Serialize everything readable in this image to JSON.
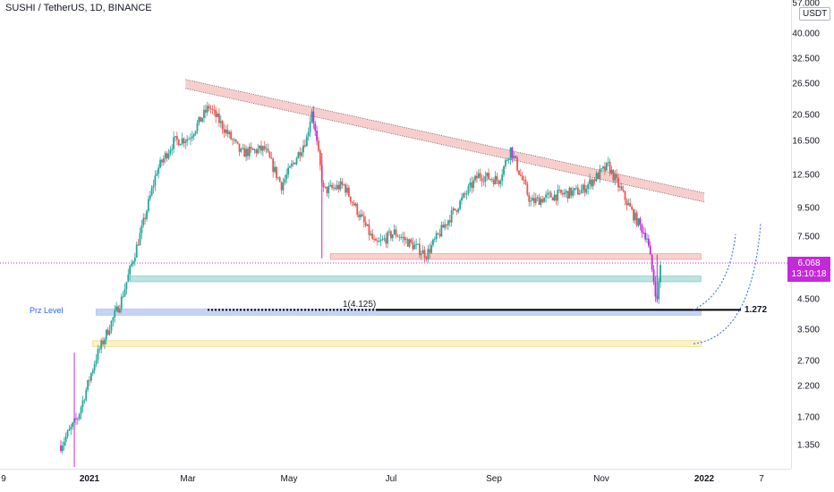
{
  "header": {
    "symbol_title": "SUSHI / TetherUS, 1D, BINANCE"
  },
  "price_axis": {
    "unit": "USDT",
    "ticks": [
      "57.000",
      "40.000",
      "32.500",
      "26.500",
      "20.500",
      "16.500",
      "12.500",
      "9.500",
      "7.500",
      "6.068",
      "4.500",
      "3.500",
      "2.700",
      "2.200",
      "1.700",
      "1.350"
    ]
  },
  "time_axis": {
    "ticks": [
      "9",
      "2021",
      "Mar",
      "May",
      "Jul",
      "Sep",
      "Nov",
      "2022",
      "7"
    ]
  },
  "current_price": {
    "value": "6.068",
    "countdown": "13:10:18"
  },
  "annotations": {
    "prz_label": "Prz Level",
    "fib_label_left": "1(4.125)",
    "fib_label_right": "1.272"
  },
  "colors": {
    "up": "#26a69a",
    "down": "#ef5350",
    "highlight": "#c42bd8",
    "resistance_zone": "#f7c9c6",
    "support_zone_green": "#b2dfdb",
    "prz_zone_blue": "#bbcdf5",
    "support_zone_yellow": "#fdf1b8",
    "fib_line": "#000000",
    "curve": "#2962ff"
  },
  "chart_data": {
    "type": "candlestick",
    "title": "SUSHI / TetherUS, 1D, BINANCE",
    "y_scale": "log",
    "ylim": [
      1.15,
      57
    ],
    "x_range": [
      "2020-12-09",
      "2022-01-07"
    ],
    "series_close_approx": [
      {
        "date": "2020-12-15",
        "close": 1.35
      },
      {
        "date": "2020-12-25",
        "close": 1.7
      },
      {
        "date": "2021-01-05",
        "close": 2.8
      },
      {
        "date": "2021-01-20",
        "close": 4.5
      },
      {
        "date": "2021-02-01",
        "close": 8.0
      },
      {
        "date": "2021-02-10",
        "close": 13.0
      },
      {
        "date": "2021-02-20",
        "close": 16.5
      },
      {
        "date": "2021-03-01",
        "close": 17.0
      },
      {
        "date": "2021-03-13",
        "close": 22.0
      },
      {
        "date": "2021-04-01",
        "close": 15.0
      },
      {
        "date": "2021-04-15",
        "close": 15.5
      },
      {
        "date": "2021-04-25",
        "close": 11.5
      },
      {
        "date": "2021-05-10",
        "close": 17.0
      },
      {
        "date": "2021-05-13",
        "close": 21.5
      },
      {
        "date": "2021-05-20",
        "close": 11.0
      },
      {
        "date": "2021-06-01",
        "close": 11.5
      },
      {
        "date": "2021-06-20",
        "close": 7.0
      },
      {
        "date": "2021-07-01",
        "close": 7.8
      },
      {
        "date": "2021-07-20",
        "close": 6.5
      },
      {
        "date": "2021-08-01",
        "close": 8.5
      },
      {
        "date": "2021-08-20",
        "close": 12.5
      },
      {
        "date": "2021-09-01",
        "close": 12.0
      },
      {
        "date": "2021-09-08",
        "close": 15.5
      },
      {
        "date": "2021-09-20",
        "close": 10.0
      },
      {
        "date": "2021-10-01",
        "close": 10.5
      },
      {
        "date": "2021-10-20",
        "close": 11.0
      },
      {
        "date": "2021-11-05",
        "close": 13.5
      },
      {
        "date": "2021-11-20",
        "close": 9.0
      },
      {
        "date": "2021-11-28",
        "close": 7.5
      },
      {
        "date": "2021-12-04",
        "close": 4.4
      },
      {
        "date": "2021-12-06",
        "close": 6.068
      }
    ],
    "zones": [
      {
        "name": "resistance-trendline-channel",
        "from": [
          "2021-02-27",
          27.5
        ],
        "to": [
          "2022-01-01",
          10.8
        ]
      },
      {
        "name": "horizontal-resistance",
        "y_range": [
          6.25,
          6.55
        ],
        "x_range": [
          "2021-05-24",
          "2021-12-30"
        ]
      },
      {
        "name": "support-green",
        "y_range": [
          5.2,
          5.45
        ],
        "x_range": [
          "2021-01-25",
          "2021-12-30"
        ]
      },
      {
        "name": "prz-level",
        "y_range": [
          3.95,
          4.15
        ],
        "x_range": [
          "2021-01-05",
          "2021-12-30"
        ]
      },
      {
        "name": "support-yellow",
        "y_range": [
          3.05,
          3.2
        ],
        "x_range": [
          "2021-01-03",
          "2021-12-30"
        ]
      }
    ],
    "fib_levels": [
      {
        "label": "1(4.125)",
        "price": 4.125
      },
      {
        "label": "1.272",
        "price": 4.05
      }
    ],
    "current_price": 6.068
  }
}
